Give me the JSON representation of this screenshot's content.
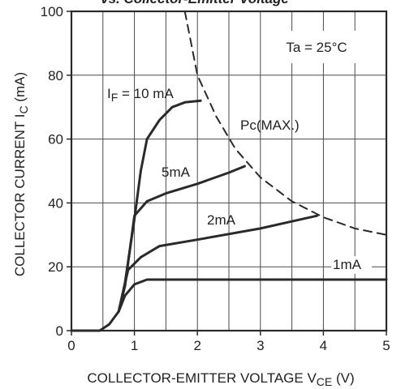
{
  "chart_data": {
    "type": "line",
    "title": "vs. Collector-Emitter Voltage",
    "xlabel": "COLLECTOR-EMITTER VOLTAGE V",
    "xlabel_sub": "CE",
    "xlabel_unit": " (V)",
    "ylabel": "COLLECTOR CURRENT I",
    "ylabel_sub": "C",
    "ylabel_unit": " (mA)",
    "xlim": [
      0,
      5
    ],
    "ylim": [
      0,
      100
    ],
    "x_ticks": [
      0,
      1,
      2,
      3,
      4,
      5
    ],
    "y_ticks": [
      0,
      20,
      40,
      60,
      80,
      100
    ],
    "x_tick_labels": [
      "0",
      "1",
      "2",
      "3",
      "4",
      "5"
    ],
    "y_tick_labels": [
      "0",
      "20",
      "40",
      "60",
      "80",
      "100"
    ],
    "grid": true,
    "minor_grid_step_x": 0.5,
    "annotations": {
      "condition": "Ta = 25°C",
      "power_limit": "Pc(MAX.)"
    },
    "series": [
      {
        "name": "I",
        "name_sub": "F",
        "name_suffix": " = 10 mA",
        "style": "solid",
        "points": [
          [
            0,
            0
          ],
          [
            0.45,
            0
          ],
          [
            0.6,
            2
          ],
          [
            0.75,
            6
          ],
          [
            0.85,
            15
          ],
          [
            1.0,
            35
          ],
          [
            1.1,
            50
          ],
          [
            1.2,
            60
          ],
          [
            1.4,
            66
          ],
          [
            1.6,
            70
          ],
          [
            1.8,
            71.5
          ],
          [
            2.05,
            72
          ]
        ]
      },
      {
        "name": "5mA",
        "style": "solid",
        "points": [
          [
            0.75,
            6
          ],
          [
            0.85,
            14
          ],
          [
            1.0,
            36
          ],
          [
            1.2,
            40.5
          ],
          [
            1.5,
            43
          ],
          [
            2.0,
            46
          ],
          [
            2.5,
            49.5
          ],
          [
            2.75,
            51.5
          ]
        ]
      },
      {
        "name": "2mA",
        "style": "solid",
        "points": [
          [
            0.75,
            6
          ],
          [
            0.9,
            19
          ],
          [
            1.1,
            23
          ],
          [
            1.4,
            26.5
          ],
          [
            2.0,
            28.5
          ],
          [
            3.0,
            32
          ],
          [
            3.9,
            36
          ]
        ]
      },
      {
        "name": "1mA",
        "style": "solid",
        "points": [
          [
            0.75,
            6
          ],
          [
            0.85,
            11
          ],
          [
            1.0,
            14.5
          ],
          [
            1.2,
            16
          ],
          [
            2.0,
            16
          ],
          [
            3.0,
            16
          ],
          [
            4.0,
            16
          ],
          [
            5.0,
            16
          ]
        ]
      },
      {
        "name": "Pc(MAX.)",
        "style": "dashed",
        "points": [
          [
            1.8,
            100
          ],
          [
            2.0,
            80
          ],
          [
            2.3,
            67
          ],
          [
            2.6,
            57
          ],
          [
            3.0,
            48
          ],
          [
            3.5,
            40.5
          ],
          [
            4.0,
            35.5
          ],
          [
            4.5,
            32
          ],
          [
            5.0,
            30
          ]
        ]
      }
    ]
  },
  "colors": {
    "curve": "#2a2a2a",
    "grid": "#4a4a4a",
    "text": "#222222",
    "background": "#ffffff"
  }
}
